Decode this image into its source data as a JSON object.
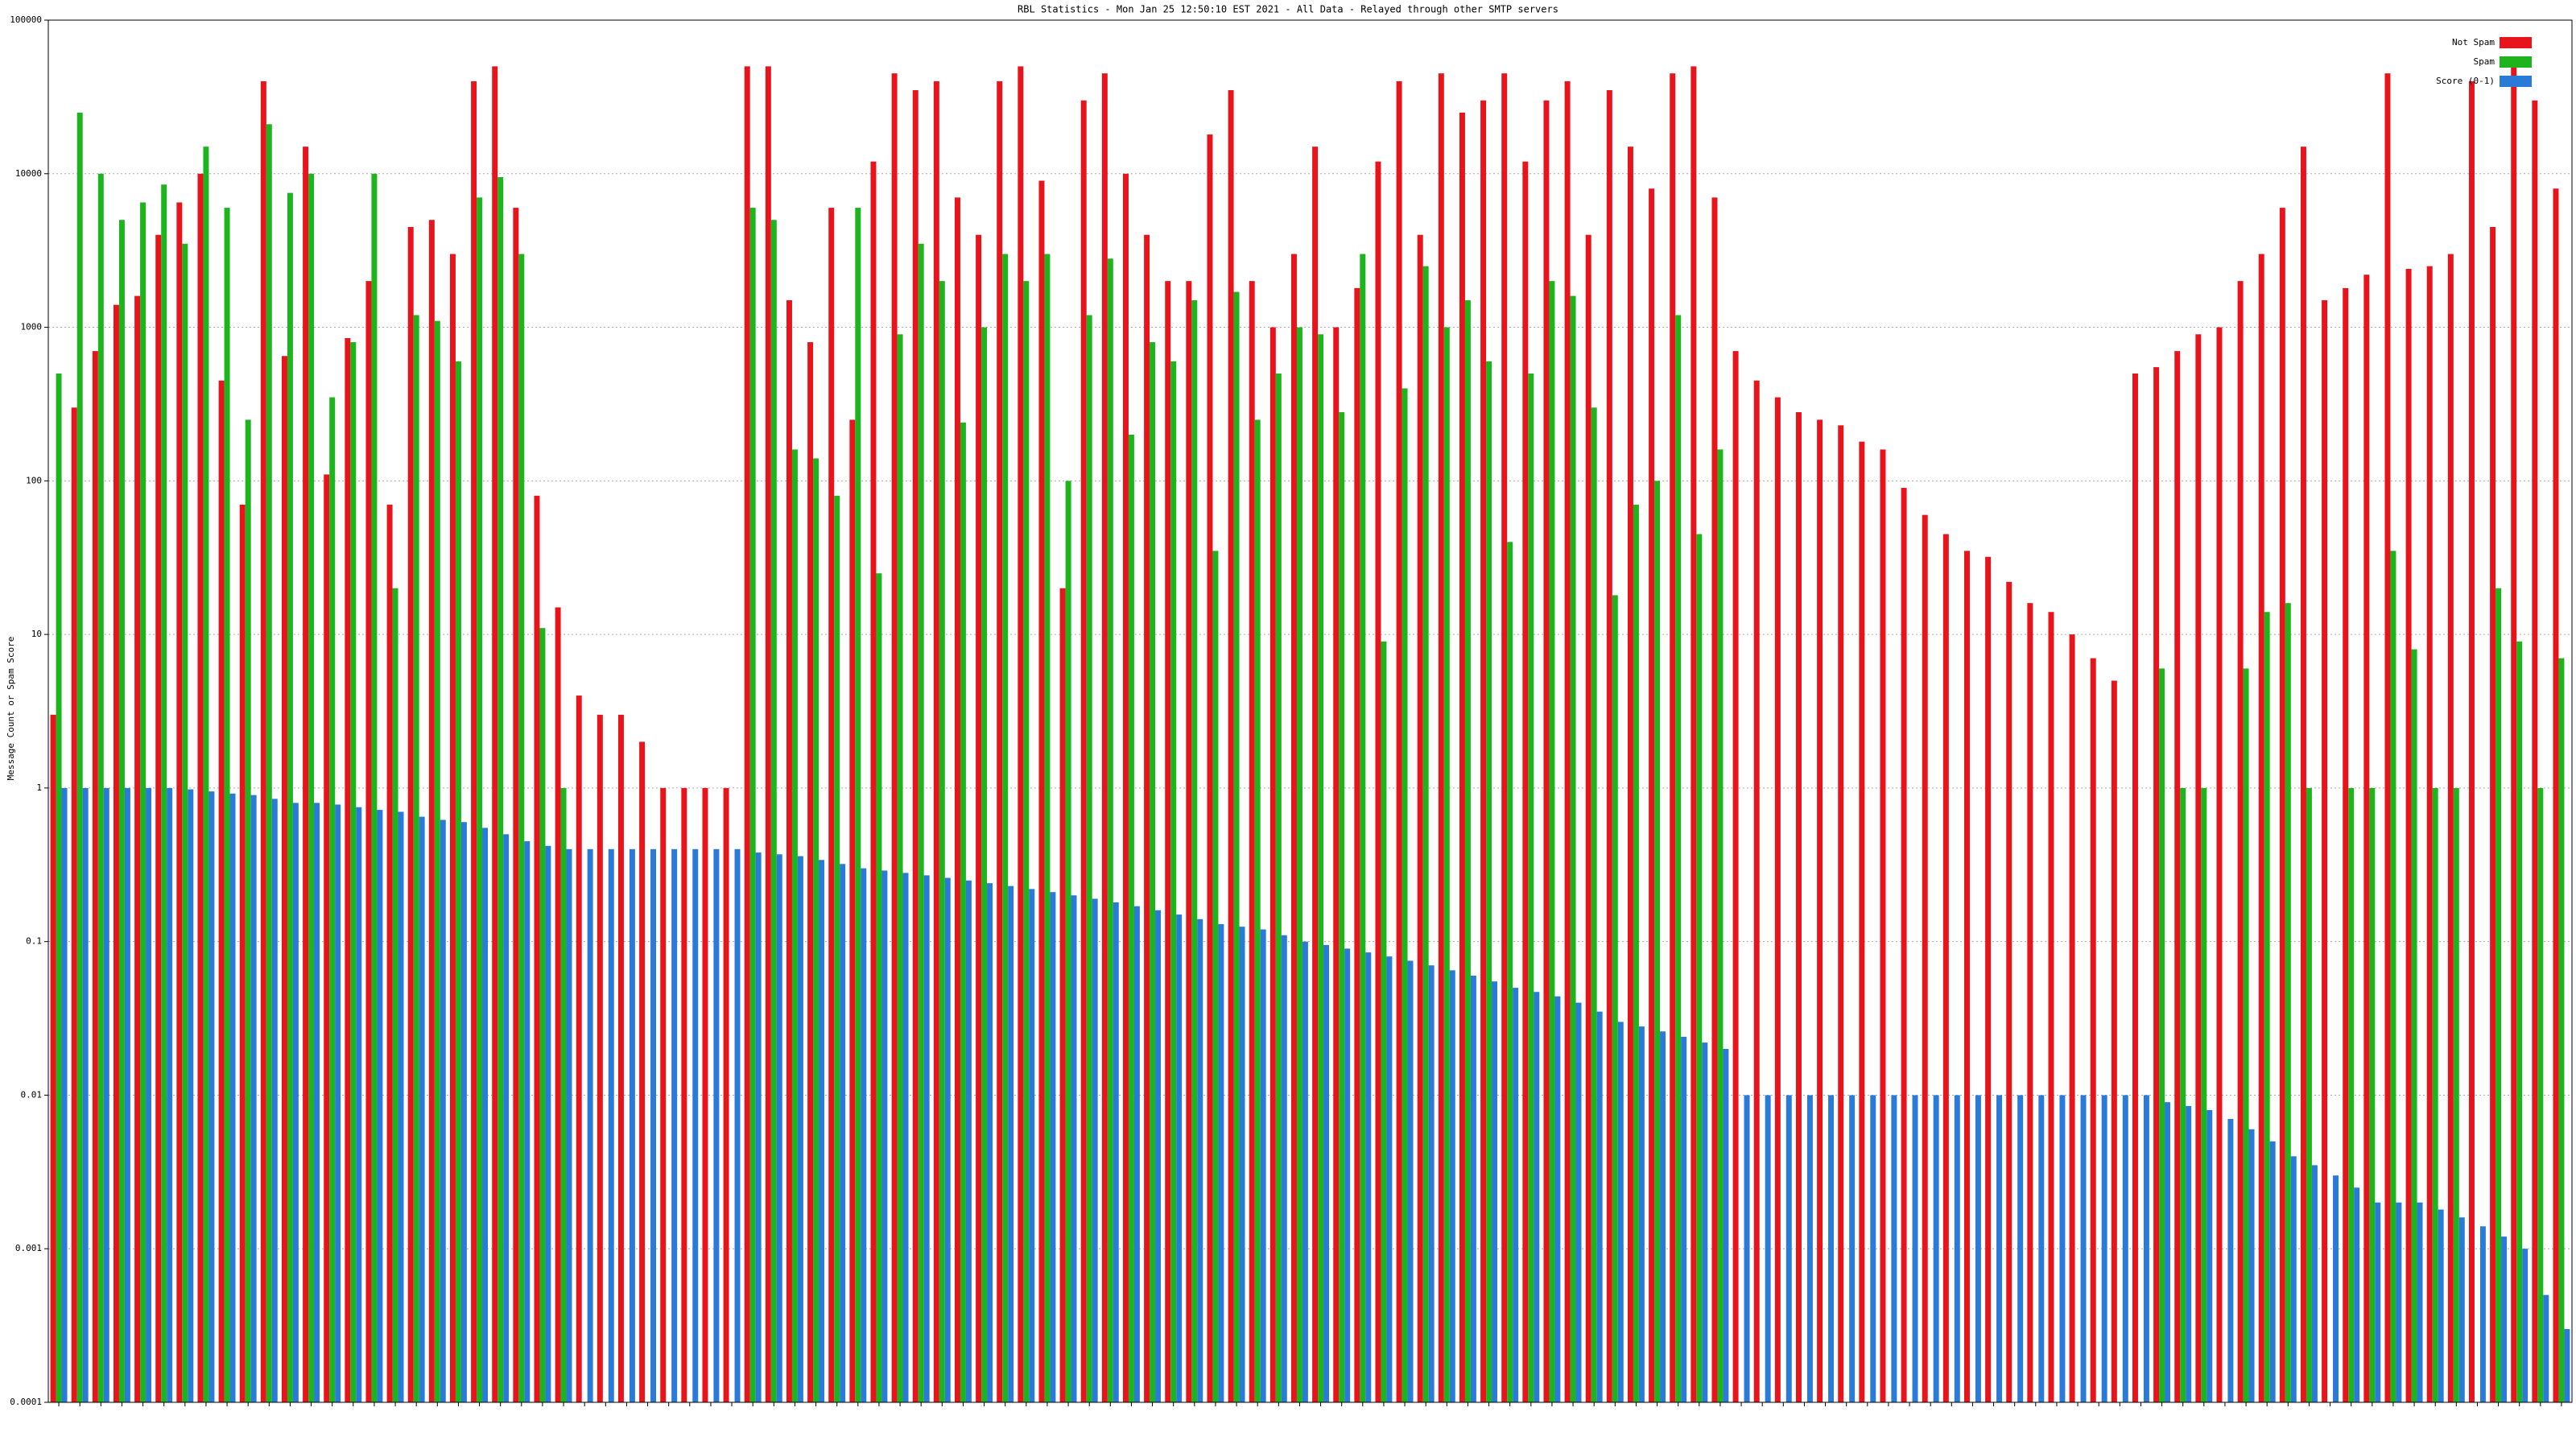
{
  "chart_data": {
    "type": "bar",
    "log_scale": true,
    "grid": true,
    "legend": "top-right",
    "title": "RBL Statistics - Mon Jan 25 12:50:10 EST 2021 - All Data - Relayed through other SMTP servers",
    "ylabel": "Message Count or Spam Score",
    "ylim": [
      0.0001,
      100000
    ],
    "yticks": [
      0.0001,
      0.001,
      0.01,
      0.1,
      1,
      10,
      100,
      1000,
      10000,
      100000
    ],
    "categories": [
      null,
      null,
      null,
      null,
      null,
      null,
      null,
      null,
      null,
      null,
      null,
      null,
      null,
      null,
      null,
      null,
      null,
      null,
      null,
      null,
      null,
      null,
      null,
      null,
      null,
      null,
      null,
      null,
      null,
      null,
      null,
      null,
      null,
      null,
      null,
      null,
      null,
      null,
      null,
      null,
      null,
      null,
      null,
      null,
      null,
      null,
      null,
      null,
      null,
      null,
      null,
      null,
      null,
      null,
      null,
      null,
      null,
      null,
      null,
      null,
      null,
      null,
      null,
      null,
      null,
      null,
      null,
      null,
      null,
      null,
      null,
      null,
      null,
      null,
      null,
      null,
      null,
      null,
      null,
      null,
      null,
      null,
      null,
      null,
      null,
      null,
      null,
      null,
      null,
      null,
      null,
      null,
      null,
      null,
      null,
      null,
      null,
      null,
      null,
      null,
      null,
      null,
      null,
      null,
      null,
      null,
      null,
      null,
      null,
      null,
      null,
      null,
      null,
      null,
      null,
      null,
      null,
      null,
      null,
      null
    ],
    "series": [
      {
        "name": "Not Spam",
        "color": "#e8141c",
        "values": [
          3,
          300,
          700,
          1400,
          1600,
          4000,
          6500,
          10000,
          450,
          70,
          40000,
          650,
          15000,
          110,
          850,
          2000,
          70,
          4500,
          5000,
          3000,
          40000,
          50000,
          6000,
          80,
          15,
          4,
          3,
          3,
          2,
          1,
          1,
          1,
          1,
          50000,
          50000,
          1500,
          800,
          6000,
          250,
          12000,
          45000,
          35000,
          40000,
          7000,
          4000,
          40000,
          50000,
          9000,
          20,
          30000,
          45000,
          10000,
          4000,
          2000,
          2000,
          18000,
          35000,
          2000,
          1000,
          3000,
          15000,
          1000,
          1800,
          12000,
          40000,
          4000,
          45000,
          25000,
          30000,
          45000,
          12000,
          30000,
          40000,
          4000,
          35000,
          15000,
          8000,
          45000,
          50000,
          7000,
          700,
          450,
          350,
          280,
          250,
          230,
          180,
          160,
          90,
          60,
          45,
          35,
          32,
          22,
          16,
          14,
          10,
          7,
          5,
          500,
          550,
          700,
          900,
          1000,
          2000,
          3000,
          6000,
          15000,
          1500,
          1800,
          2200,
          45000,
          2400,
          2500,
          3000,
          40000,
          4500,
          50000,
          30000,
          8000
        ]
      },
      {
        "name": "Spam",
        "color": "#1eb41e",
        "values": [
          500,
          25000,
          10000,
          5000,
          6500,
          8500,
          3500,
          15000,
          6000,
          250,
          21000,
          7500,
          10000,
          350,
          800,
          10000,
          20,
          1200,
          1100,
          600,
          7000,
          9500,
          3000,
          11,
          1,
          null,
          null,
          null,
          null,
          null,
          null,
          null,
          null,
          6000,
          5000,
          160,
          140,
          80,
          6000,
          25,
          900,
          3500,
          2000,
          240,
          1000,
          3000,
          2000,
          3000,
          100,
          1200,
          2800,
          200,
          800,
          600,
          1500,
          35,
          1700,
          250,
          500,
          1000,
          900,
          280,
          3000,
          9,
          400,
          2500,
          1000,
          1500,
          600,
          40,
          500,
          2000,
          1600,
          300,
          18,
          70,
          100,
          1200,
          45,
          160,
          null,
          null,
          null,
          null,
          null,
          null,
          null,
          null,
          null,
          null,
          null,
          null,
          null,
          null,
          null,
          null,
          null,
          null,
          null,
          null,
          6,
          1,
          1,
          null,
          6,
          14,
          16,
          1,
          null,
          1,
          1,
          35,
          8,
          1,
          1,
          null,
          20,
          9,
          1,
          7
        ]
      },
      {
        "name": "Score (0-1)",
        "color": "#2a7ad8",
        "values": [
          1,
          1,
          1,
          1,
          1,
          1,
          0.98,
          0.95,
          0.92,
          0.9,
          0.85,
          0.8,
          0.8,
          0.78,
          0.75,
          0.72,
          0.7,
          0.65,
          0.62,
          0.6,
          0.55,
          0.5,
          0.45,
          0.42,
          0.4,
          0.4,
          0.4,
          0.4,
          0.4,
          0.4,
          0.4,
          0.4,
          0.4,
          0.38,
          0.37,
          0.36,
          0.34,
          0.32,
          0.3,
          0.29,
          0.28,
          0.27,
          0.26,
          0.25,
          0.24,
          0.23,
          0.22,
          0.21,
          0.2,
          0.19,
          0.18,
          0.17,
          0.16,
          0.15,
          0.14,
          0.13,
          0.125,
          0.12,
          0.11,
          0.1,
          0.095,
          0.09,
          0.085,
          0.08,
          0.075,
          0.07,
          0.065,
          0.06,
          0.055,
          0.05,
          0.047,
          0.044,
          0.04,
          0.035,
          0.03,
          0.028,
          0.026,
          0.024,
          0.022,
          0.02,
          0.01,
          0.01,
          0.01,
          0.01,
          0.01,
          0.01,
          0.01,
          0.01,
          0.01,
          0.01,
          0.01,
          0.01,
          0.01,
          0.01,
          0.01,
          0.01,
          0.01,
          0.01,
          0.01,
          0.01,
          0.009,
          0.0085,
          0.008,
          0.007,
          0.006,
          0.005,
          0.004,
          0.0035,
          0.003,
          0.0025,
          0.002,
          0.002,
          0.002,
          0.0018,
          0.0016,
          0.0014,
          0.0012,
          0.001,
          0.0005,
          0.0003
        ]
      }
    ]
  }
}
